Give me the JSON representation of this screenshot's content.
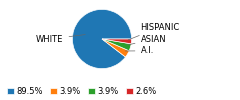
{
  "chart_data": {
    "type": "pie",
    "categories": [
      "WHITE",
      "A.I.",
      "ASIAN",
      "HISPANIC"
    ],
    "values": [
      89.5,
      3.9,
      3.9,
      2.6
    ],
    "value_labels": [
      "89.5%",
      "3.9%",
      "3.9%",
      "2.6%"
    ],
    "legend": "lower left"
  }
}
